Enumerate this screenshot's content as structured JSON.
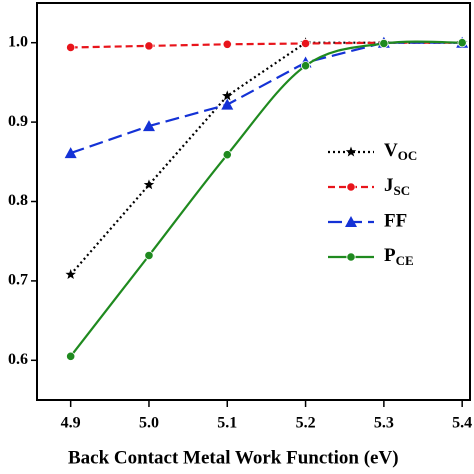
{
  "chart_data": {
    "type": "line",
    "x_label": "Back Contact Metal Work Function (eV)",
    "x": [
      4.9,
      5.0,
      5.1,
      5.2,
      5.3,
      5.4
    ],
    "xlim": [
      4.857,
      5.41
    ],
    "xticks": [
      4.9,
      {
        "value": 5.0,
        "label": "5.0"
      },
      5.1,
      5.2,
      5.3,
      5.4
    ],
    "ylim": [
      0.55,
      1.05
    ],
    "yticks": [
      0.6,
      0.7,
      0.8,
      0.9,
      {
        "value": 1.0,
        "label": "1.0"
      }
    ],
    "legend": "right",
    "series": [
      {
        "name": "VOC",
        "color": "#000000",
        "marker": "star",
        "dash": "dotted",
        "values": [
          0.708,
          0.821,
          0.933,
          1.0,
          1.0,
          1.0
        ]
      },
      {
        "name": "JSC",
        "color": "#e8141b",
        "marker": "circle",
        "dash": "dashed",
        "values": [
          0.994,
          0.996,
          0.998,
          0.999,
          1.0,
          1.0
        ]
      },
      {
        "name": "FF",
        "color": "#1432d6",
        "marker": "triangle",
        "dash": "longdash",
        "values": [
          0.861,
          0.895,
          0.922,
          0.975,
          1.0,
          1.0
        ]
      },
      {
        "name": "PCE",
        "color": "#1f8a1f",
        "marker": "circle",
        "dash": "solid",
        "smooth": true,
        "values": [
          0.605,
          0.732,
          0.859,
          0.971,
          0.999,
          1.0
        ]
      }
    ]
  }
}
